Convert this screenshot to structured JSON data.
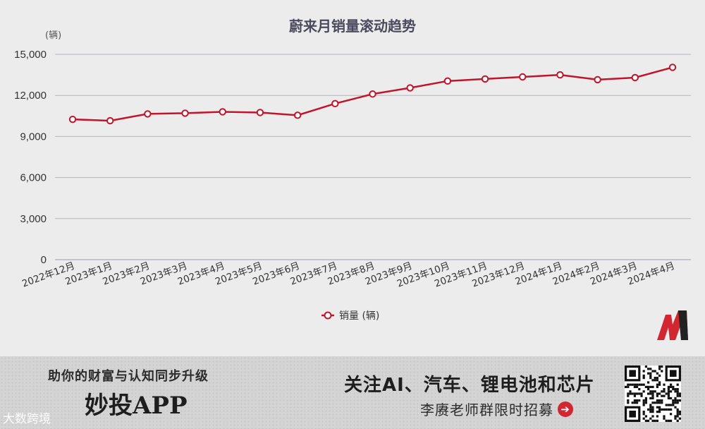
{
  "chart_data": {
    "type": "line",
    "title": "蔚来月销量滚动趋势",
    "unit": "(辆)",
    "categories": [
      "2022年12月",
      "2023年1月",
      "2023年2月",
      "2023年3月",
      "2023年4月",
      "2023年5月",
      "2023年6月",
      "2023年7月",
      "2023年8月",
      "2023年9月",
      "2023年10月",
      "2023年11月",
      "2023年12月",
      "2024年1月",
      "2024年2月",
      "2024年3月",
      "2024年4月"
    ],
    "series": [
      {
        "name": "销量 (辆)",
        "color": "#c0152b",
        "values": [
          10250,
          10150,
          10650,
          10700,
          10800,
          10750,
          10550,
          11400,
          12100,
          12550,
          13050,
          13200,
          13350,
          13500,
          13150,
          13300,
          14050
        ]
      }
    ],
    "yticks": [
      "15,000",
      "12,000",
      "9,000",
      "6,000",
      "3,000",
      "0"
    ],
    "ylim": [
      0,
      15000
    ],
    "grid": true,
    "legend_position": "bottom-center"
  },
  "banner": {
    "slogan": "助你的财富与认知同步升级",
    "app_name": "妙投APP",
    "watermark": "大数跨境",
    "follow": "关注AI、汽车、锂电池和芯片",
    "group": "李赓老师群限时招募"
  },
  "icons": {
    "logo": "m-logo-icon",
    "qr": "qr-code-icon",
    "arrow": "arrow-right-icon"
  }
}
